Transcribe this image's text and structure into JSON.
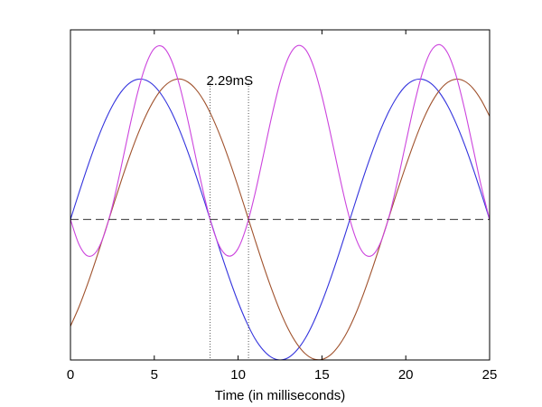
{
  "chart_data": {
    "type": "line",
    "title": "",
    "xlabel": "Time (in milliseconds)",
    "ylabel": "",
    "xlim": [
      0,
      25
    ],
    "ylim": [
      -1.0,
      1.35
    ],
    "xticks": [
      "0",
      "5",
      "10",
      "15",
      "20",
      "25"
    ],
    "grid": false,
    "legend": "none",
    "x": [
      0,
      0.5,
      1,
      1.5,
      2,
      2.5,
      3,
      3.5,
      4,
      4.5,
      5,
      5.5,
      6,
      6.5,
      7,
      7.5,
      8,
      8.5,
      9,
      9.5,
      10,
      10.5,
      11,
      11.5,
      12,
      12.5,
      13,
      13.5,
      14,
      14.5,
      15,
      15.5,
      16,
      16.5,
      17,
      17.5,
      18,
      18.5,
      19,
      19.5,
      20,
      20.5,
      21,
      21.5,
      22,
      22.5,
      23,
      23.5,
      24,
      24.5,
      25
    ],
    "series": [
      {
        "color": "#3333dd",
        "values": [
          0,
          0.187,
          0.368,
          0.536,
          0.685,
          0.809,
          0.905,
          0.969,
          0.998,
          0.992,
          0.951,
          0.876,
          0.771,
          0.638,
          0.482,
          0.309,
          0.125,
          -0.063,
          -0.249,
          -0.425,
          -0.588,
          -0.73,
          -0.847,
          -0.93,
          -0.982,
          -1.0,
          -0.983,
          -0.931,
          -0.847,
          -0.731,
          -0.588,
          -0.426,
          -0.249,
          -0.062,
          0.125,
          0.31,
          0.482,
          0.639,
          0.771,
          0.876,
          0.952,
          0.992,
          0.998,
          0.969,
          0.905,
          0.809,
          0.684,
          0.535,
          0.368,
          0.187,
          0.0
        ]
      },
      {
        "color": "#a0522d",
        "values": [
          -0.76,
          -0.625,
          -0.467,
          -0.293,
          -0.109,
          0.079,
          0.265,
          0.441,
          0.601,
          0.74,
          0.853,
          0.936,
          0.985,
          1.0,
          0.979,
          0.924,
          0.836,
          0.717,
          0.574,
          0.41,
          0.233,
          0.046,
          -0.142,
          -0.325,
          -0.496,
          -0.651,
          -0.782,
          -0.884,
          -0.955,
          -0.993,
          -0.996,
          -0.965,
          -0.899,
          -0.802,
          -0.675,
          -0.522,
          -0.352,
          -0.17,
          0.017,
          0.204,
          0.381,
          0.549,
          0.7,
          0.824,
          0.917,
          0.976,
          0.999,
          0.985,
          0.935,
          0.85,
          0.735
        ]
      },
      {
        "color": "#cc44dd",
        "values": [
          0,
          -0.175,
          -0.258,
          -0.236,
          -0.112,
          0.096,
          0.36,
          0.641,
          0.9,
          1.101,
          1.217,
          1.23,
          1.139,
          0.957,
          0.708,
          0.428,
          0.157,
          -0.068,
          -0.214,
          -0.261,
          -0.206,
          -0.05,
          0.18,
          0.453,
          0.731,
          0.977,
          1.153,
          1.235,
          1.213,
          1.089,
          0.878,
          0.617,
          0.336,
          0.075,
          -0.127,
          -0.243,
          -0.255,
          -0.163,
          0.02,
          0.268,
          0.544,
          0.817,
          1.048,
          1.198,
          1.245,
          1.184,
          1.025,
          0.79,
          0.516,
          0.238,
          0.0
        ]
      }
    ],
    "reference_line": {
      "y": 0,
      "style": "dashed",
      "color": "#333333"
    },
    "markers": {
      "x": [
        8.33,
        10.62
      ],
      "style": "dotted",
      "color": "#555555"
    },
    "annotation": {
      "text": "2.29mS",
      "x": 9.5
    }
  }
}
